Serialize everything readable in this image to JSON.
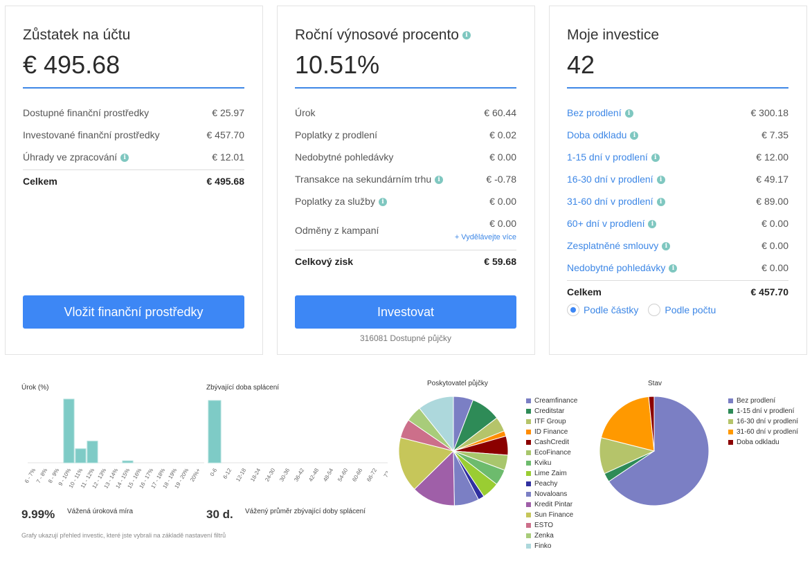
{
  "cards": [
    {
      "title": "Zůstatek na účtu",
      "value": "€ 495.68",
      "rows": [
        {
          "label": "Dostupné finanční prostředky",
          "value": "€ 25.97",
          "info": false
        },
        {
          "label": "Investované finanční prostředky",
          "value": "€ 457.70",
          "info": false
        },
        {
          "label": "Úhrady ve zpracování",
          "value": "€ 12.01",
          "info": true
        }
      ],
      "total": {
        "label": "Celkem",
        "value": "€ 495.68"
      },
      "button": "Vložit finanční prostředky"
    },
    {
      "title": "Roční výnosové procento",
      "value": "10.51%",
      "rows": [
        {
          "label": "Úrok",
          "value": "€ 60.44",
          "info": false
        },
        {
          "label": "Poplatky z prodlení",
          "value": "€ 0.02",
          "info": false
        },
        {
          "label": "Nedobytné pohledávky",
          "value": "€ 0.00",
          "info": false
        },
        {
          "label": "Transakce na sekundárním trhu",
          "value": "€ -0.78",
          "info": true
        },
        {
          "label": "Poplatky za služby",
          "value": "€ 0.00",
          "info": true
        },
        {
          "label": "Odměny z kampaní",
          "value": "€ 0.00",
          "info": false,
          "link": "+ Vydělávejte více"
        }
      ],
      "total": {
        "label": "Celkový zisk",
        "value": "€ 59.68"
      },
      "button": "Investovat",
      "button_sub": "316081 Dostupné půjčky"
    },
    {
      "title": "Moje investice",
      "value": "42",
      "rows": [
        {
          "label": "Bez prodlení",
          "value": "€ 300.18"
        },
        {
          "label": "Doba odkladu",
          "value": "€ 7.35"
        },
        {
          "label": "1-15 dní v prodlení",
          "value": "€ 12.00"
        },
        {
          "label": "16-30 dní v prodlení",
          "value": "€ 49.17"
        },
        {
          "label": "31-60 dní v prodlení",
          "value": "€ 89.00"
        },
        {
          "label": "60+ dní v prodlení",
          "value": "€ 0.00"
        },
        {
          "label": "Zesplatněné smlouvy",
          "value": "€ 0.00"
        },
        {
          "label": "Nedobytné pohledávky",
          "value": "€ 0.00"
        }
      ],
      "total": {
        "label": "Celkem",
        "value": "€ 457.70"
      },
      "radio": {
        "options": [
          "Podle částky",
          "Podle počtu"
        ],
        "selected": 0
      }
    }
  ],
  "bottom": {
    "interest_label": "Úrok (%)",
    "remaining_label": "Zbývající doba splácení",
    "interest_stat": "9.99%",
    "interest_desc": "Vážená úroková míra",
    "remaining_stat": "30 d.",
    "remaining_desc": "Vážený průměr zbývající doby splácení",
    "footnote": "Grafy ukazují přehled investic, které jste vybrali na základě nastavení filtrů",
    "lender_title": "Poskytovatel půjčky",
    "status_title": "Stav"
  },
  "chart_data": [
    {
      "type": "bar",
      "ylabel": "Úrok (%)",
      "categories": [
        "6 - 7%",
        "7 - 8%",
        "8 - 9%",
        "9 - 10%",
        "10 - 11%",
        "11 - 12%",
        "12 - 13%",
        "13 - 14%",
        "14 - 15%",
        "15 - 16%",
        "16 - 17%",
        "17 - 18%",
        "18 - 19%",
        "19 - 20%",
        "20%+"
      ],
      "values": [
        0,
        0,
        0,
        100,
        22,
        34,
        0,
        0,
        3,
        0,
        0,
        0,
        0,
        0,
        0
      ],
      "color": "#7ecbc6"
    },
    {
      "type": "bar",
      "ylabel": "Zbývající doba splácení",
      "categories": [
        "0-6",
        "6-12",
        "12-18",
        "18-24",
        "24-30",
        "30-36",
        "36-42",
        "42-48",
        "48-54",
        "54-60",
        "60-66",
        "66-72",
        "72+"
      ],
      "values": [
        100,
        0,
        0,
        0,
        0,
        0,
        0,
        0,
        0,
        0,
        0,
        0,
        0
      ],
      "color": "#7ecbc6"
    },
    {
      "type": "pie",
      "title": "Poskytovatel půjčky",
      "labels": [
        "Creamfinance",
        "Creditstar",
        "ITF Group",
        "ID Finance",
        "CashCredit",
        "EcoFinance",
        "Kviku",
        "Lime Zaim",
        "Peachy",
        "Novaloans",
        "Kredit Pintar",
        "Sun Finance",
        "ESTO",
        "Zenka",
        "Finko"
      ],
      "values": [
        5.2,
        7.8,
        3.9,
        1.4,
        5.0,
        4.0,
        4.2,
        4.6,
        1.6,
        6.5,
        11.5,
        14.5,
        5.0,
        4.2,
        9.5
      ],
      "colors": [
        "#7b7fc4",
        "#2e8b57",
        "#b5c46a",
        "#ff8c00",
        "#8b0000",
        "#a8c66c",
        "#6dbb6d",
        "#9acd32",
        "#3030a0",
        "#7b7fc4",
        "#9f5fa8",
        "#c6c65a",
        "#cc6f8a",
        "#a8cc7a",
        "#add8dc"
      ]
    },
    {
      "type": "pie",
      "title": "Stav",
      "labels": [
        "Bez prodlení",
        "1-15 dní v prodlení",
        "16-30 dní v prodlení",
        "31-60 dní v prodlení",
        "Doba odkladu"
      ],
      "values": [
        300.18,
        12.0,
        49.17,
        89.0,
        7.35
      ],
      "colors": [
        "#7b7fc4",
        "#2e8b57",
        "#b5c46a",
        "#ff9900",
        "#8b0000"
      ]
    }
  ]
}
